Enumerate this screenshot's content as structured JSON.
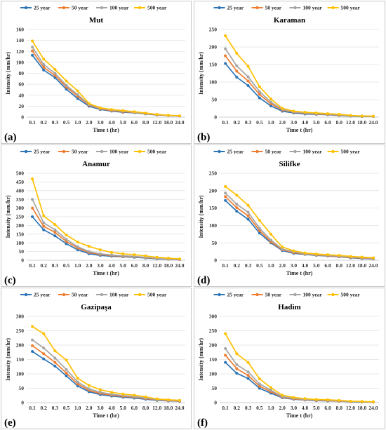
{
  "figure": {
    "legend": [
      "25 year",
      "50 year",
      "100 year",
      "500 year"
    ],
    "colors": [
      "#2E75B6",
      "#ED7D31",
      "#A5A5A5",
      "#FFC000"
    ]
  },
  "chart_data": [
    {
      "type": "line",
      "panel_label": "(a)",
      "title": "Mut",
      "xlabel": "Time t (hr)",
      "ylabel": "Intensity (mm/hr)",
      "categories": [
        "0.1",
        "0.2",
        "0.3",
        "0.5",
        "1.0",
        "2.0",
        "3.0",
        "4.0",
        "5.0",
        "6.0",
        "8.0",
        "12.0",
        "18.0",
        "24.0"
      ],
      "ylim": [
        0,
        160
      ],
      "yticks": [
        0,
        20,
        40,
        60,
        80,
        100,
        120,
        140,
        160
      ],
      "grid": true,
      "legend_position": "top",
      "series": [
        {
          "name": "25 year",
          "values": [
            113,
            86,
            72,
            51,
            34,
            20,
            14,
            11,
            9,
            8,
            6,
            4,
            3,
            2
          ]
        },
        {
          "name": "50 year",
          "values": [
            121,
            91,
            76,
            55,
            38,
            22,
            15,
            12,
            10,
            8.5,
            6.5,
            4.5,
            3,
            2
          ]
        },
        {
          "name": "100 year",
          "values": [
            128,
            96,
            80,
            58,
            41,
            23,
            16,
            13,
            11,
            9,
            7,
            5,
            3,
            2
          ]
        },
        {
          "name": "500 year",
          "values": [
            139,
            106,
            87,
            66,
            48,
            25,
            17,
            14,
            12,
            10,
            7.5,
            5,
            3.5,
            2.5
          ]
        }
      ]
    },
    {
      "type": "line",
      "panel_label": "(b)",
      "title": "Karaman",
      "xlabel": "Time t (hr)",
      "ylabel": "Intensity (mm/hr)",
      "categories": [
        "0.1",
        "0.2",
        "0.3",
        "0.5",
        "1.0",
        "2.0",
        "3.0",
        "4.0",
        "5.0",
        "6.0",
        "8.0",
        "12.0",
        "18.0",
        "24.0"
      ],
      "ylim": [
        0,
        250
      ],
      "yticks": [
        0,
        50,
        100,
        150,
        200,
        250
      ],
      "grid": true,
      "legend_position": "top",
      "series": [
        {
          "name": "25 year",
          "values": [
            153,
            114,
            90,
            55,
            32,
            17,
            12,
            9,
            8,
            7,
            5,
            3,
            2,
            2
          ]
        },
        {
          "name": "50 year",
          "values": [
            175,
            131,
            103,
            65,
            38,
            20,
            14,
            11,
            9,
            8,
            6,
            4,
            3,
            2
          ]
        },
        {
          "name": "100 year",
          "values": [
            195,
            146,
            115,
            73,
            43,
            22,
            15,
            12,
            10,
            9,
            7,
            4,
            3,
            2
          ]
        },
        {
          "name": "500 year",
          "values": [
            232,
            182,
            145,
            87,
            52,
            25,
            17,
            14,
            12,
            10,
            8,
            5,
            3,
            3
          ]
        }
      ]
    },
    {
      "type": "line",
      "panel_label": "(c)",
      "title": "Anamur",
      "xlabel": "Time t (hr)",
      "ylabel": "Intensity (mm/hr)",
      "categories": [
        "0.1",
        "0.2",
        "0.3",
        "0.5",
        "1.0",
        "2.0",
        "3.0",
        "4.0",
        "5.0",
        "6.0",
        "8.0",
        "12.0",
        "18.0",
        "24.0"
      ],
      "ylim": [
        0,
        500
      ],
      "yticks": [
        0,
        50,
        100,
        150,
        200,
        250,
        300,
        350,
        400,
        450,
        500
      ],
      "grid": true,
      "legend_position": "top",
      "series": [
        {
          "name": "25 year",
          "values": [
            250,
            175,
            140,
            95,
            60,
            38,
            28,
            23,
            20,
            17,
            13,
            8,
            6,
            4
          ]
        },
        {
          "name": "50 year",
          "values": [
            300,
            195,
            160,
            108,
            70,
            45,
            33,
            27,
            23,
            20,
            15,
            10,
            7,
            5
          ]
        },
        {
          "name": "100 year",
          "values": [
            350,
            215,
            175,
            120,
            78,
            50,
            37,
            30,
            26,
            22,
            17,
            11,
            8,
            6
          ]
        },
        {
          "name": "500 year",
          "values": [
            468,
            255,
            205,
            145,
            105,
            80,
            60,
            45,
            37,
            32,
            25,
            17,
            12,
            8
          ]
        }
      ]
    },
    {
      "type": "line",
      "panel_label": "(d)",
      "title": "Silifke",
      "xlabel": "Time t (hr)",
      "ylabel": "Intensity (mm/hr)",
      "categories": [
        "0.1",
        "0.2",
        "0.3",
        "0.5",
        "1.0",
        "2.0",
        "3.0",
        "4.0",
        "5.0",
        "6.0",
        "8.0",
        "12.0",
        "18.0",
        "24.0"
      ],
      "ylim": [
        0,
        250
      ],
      "yticks": [
        0,
        50,
        100,
        150,
        200,
        250
      ],
      "grid": true,
      "legend_position": "top",
      "series": [
        {
          "name": "25 year",
          "values": [
            172,
            141,
            118,
            78,
            50,
            28,
            20,
            17,
            14,
            12,
            10,
            7,
            5,
            4
          ]
        },
        {
          "name": "50 year",
          "values": [
            183,
            151,
            128,
            85,
            53,
            30,
            22,
            18,
            15,
            13,
            11,
            8,
            6,
            5
          ]
        },
        {
          "name": "100 year",
          "values": [
            193,
            161,
            138,
            92,
            58,
            32,
            24,
            19,
            16,
            14,
            12,
            9,
            7,
            6
          ]
        },
        {
          "name": "500 year",
          "values": [
            212,
            187,
            158,
            115,
            75,
            38,
            27,
            21,
            18,
            16,
            14,
            11,
            9,
            7
          ]
        }
      ]
    },
    {
      "type": "line",
      "panel_label": "(e)",
      "title": "Gazipaşa",
      "xlabel": "Time t (hr)",
      "ylabel": "Intensity (mm/hr)",
      "categories": [
        "0.1",
        "0.2",
        "0.3",
        "0.5",
        "1.0",
        "2.0",
        "3.0",
        "4.0",
        "5.0",
        "6.0",
        "8.0",
        "12.0",
        "18.0",
        "24.0"
      ],
      "ylim": [
        0,
        300
      ],
      "yticks": [
        0,
        50,
        100,
        150,
        200,
        250,
        300
      ],
      "grid": true,
      "legend_position": "top",
      "series": [
        {
          "name": "25 year",
          "values": [
            178,
            152,
            127,
            93,
            58,
            38,
            28,
            23,
            19,
            16,
            12,
            8,
            6,
            5
          ]
        },
        {
          "name": "50 year",
          "values": [
            198,
            170,
            140,
            103,
            65,
            43,
            32,
            26,
            22,
            19,
            14,
            10,
            7,
            6
          ]
        },
        {
          "name": "100 year",
          "values": [
            218,
            190,
            155,
            115,
            72,
            48,
            36,
            29,
            25,
            21,
            16,
            11,
            8,
            7
          ]
        },
        {
          "name": "500 year",
          "values": [
            265,
            240,
            180,
            148,
            85,
            60,
            45,
            36,
            30,
            26,
            20,
            13,
            10,
            8
          ]
        }
      ]
    },
    {
      "type": "line",
      "panel_label": "(f)",
      "title": "Hadim",
      "xlabel": "Time t (hr)",
      "ylabel": "Intensity (mm/hr)",
      "categories": [
        "0.1",
        "0.2",
        "0.3",
        "0.5",
        "1.0",
        "2.0",
        "3.0",
        "4.0",
        "5.0",
        "6.0",
        "8.0",
        "12.0",
        "18.0",
        "24.0"
      ],
      "ylim": [
        0,
        300
      ],
      "yticks": [
        0,
        50,
        100,
        150,
        200,
        250,
        300
      ],
      "grid": true,
      "legend_position": "top",
      "series": [
        {
          "name": "25 year",
          "values": [
            140,
            102,
            84,
            50,
            33,
            17,
            12,
            9,
            7,
            6,
            5,
            3,
            2,
            2
          ]
        },
        {
          "name": "50 year",
          "values": [
            165,
            118,
            95,
            57,
            38,
            19,
            13,
            10,
            8,
            7,
            5,
            4,
            3,
            2
          ]
        },
        {
          "name": "100 year",
          "values": [
            188,
            132,
            107,
            65,
            43,
            21,
            15,
            11,
            9,
            8,
            6,
            4,
            3,
            2
          ]
        },
        {
          "name": "500 year",
          "values": [
            240,
            170,
            140,
            83,
            52,
            26,
            18,
            14,
            11,
            10,
            8,
            5,
            4,
            3
          ]
        }
      ]
    }
  ]
}
